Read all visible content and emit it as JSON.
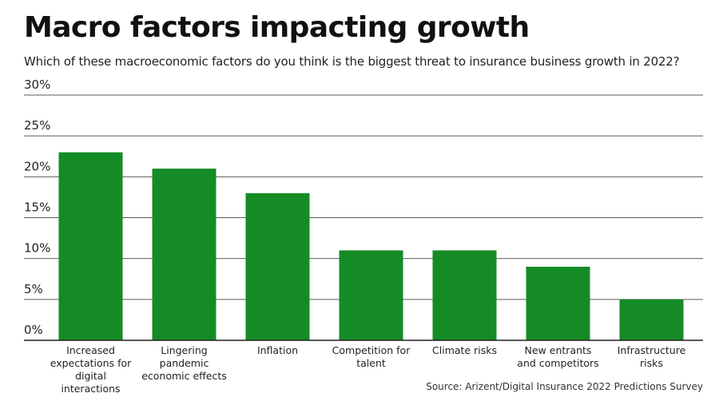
{
  "title": "Macro factors impacting growth",
  "subtitle": "Which of these macroeconomic factors do you think is the biggest threat to insurance business growth in 2022?",
  "source": "Source: Arizent/Digital Insurance 2022 Predictions Survey",
  "colors": {
    "bar": "#158B26",
    "grid": "#5b5b5b",
    "axis": "#222222"
  },
  "chart_data": {
    "type": "bar",
    "title": "Macro factors impacting growth",
    "subtitle": "Which of these macroeconomic factors do you think is the biggest threat to insurance business growth in 2022?",
    "xlabel": "",
    "ylabel": "",
    "ylim": [
      0,
      30
    ],
    "yticks": [
      0,
      5,
      10,
      15,
      20,
      25,
      30
    ],
    "ytick_labels": [
      "0%",
      "5%",
      "10%",
      "15%",
      "20%",
      "25%",
      "30%"
    ],
    "grid": true,
    "legend": "none",
    "categories": [
      "Increased expectations for digital interactions",
      "Lingering pandemic economic effects",
      "Inflation",
      "Competition for talent",
      "Climate risks",
      "New entrants and competitors",
      "Infrastructure risks"
    ],
    "category_label_lines": [
      [
        "Increased",
        "expectations for",
        "digital",
        "interactions"
      ],
      [
        "Lingering",
        "pandemic",
        "economic effects"
      ],
      [
        "Inflation"
      ],
      [
        "Competition for",
        "talent"
      ],
      [
        "Climate risks"
      ],
      [
        "New entrants",
        "and competitors"
      ],
      [
        "Infrastructure",
        "risks"
      ]
    ],
    "values": [
      23,
      21,
      18,
      11,
      11,
      9,
      5
    ]
  }
}
